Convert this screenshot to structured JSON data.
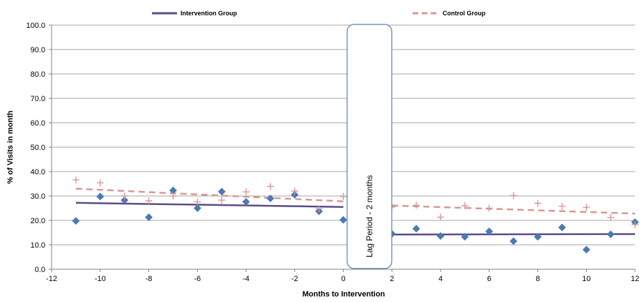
{
  "chart_data": {
    "type": "scatter",
    "title": "",
    "xlabel": "Months to Intervention",
    "ylabel": "% of Visits in month",
    "xlim": [
      -12,
      12
    ],
    "ylim": [
      0,
      100
    ],
    "x_ticks": [
      "-12",
      "-10",
      "-8",
      "-6",
      "-4",
      "-2",
      "0",
      "2",
      "4",
      "6",
      "8",
      "10",
      "12"
    ],
    "y_ticks": [
      "0.0",
      "10.0",
      "20.0",
      "30.0",
      "40.0",
      "50.0",
      "60.0",
      "70.0",
      "80.0",
      "90.0",
      "100.0"
    ],
    "grid": "horizontal",
    "legend_placement": "top",
    "annotation": "Lag Period - 2 months",
    "lag_period": [
      0,
      2
    ],
    "legend": [
      {
        "label": "Intervention Group",
        "style": "solid",
        "color": "#5b4a8b"
      },
      {
        "label": "Control Group",
        "style": "dashed",
        "color": "#d99694"
      }
    ],
    "series": [
      {
        "marker": "diamond",
        "color": "#4a7ab5",
        "points": [
          [
            -11,
            19.8
          ],
          [
            -10,
            29.8
          ],
          [
            -9,
            28.3
          ],
          [
            -8,
            21.3
          ],
          [
            -7,
            32.3
          ],
          [
            -6,
            25.0
          ],
          [
            -5,
            31.8
          ],
          [
            -4,
            27.6
          ],
          [
            -3,
            29.0
          ],
          [
            -2,
            30.5
          ],
          [
            -1,
            23.7
          ],
          [
            0,
            20.2
          ],
          [
            2,
            14.5
          ],
          [
            3,
            16.6
          ],
          [
            4,
            13.6
          ],
          [
            5,
            13.3
          ],
          [
            6,
            15.5
          ],
          [
            7,
            11.5
          ],
          [
            8,
            13.3
          ],
          [
            9,
            17.1
          ],
          [
            10,
            8.0
          ],
          [
            11,
            14.3
          ],
          [
            12,
            19.3
          ]
        ]
      },
      {
        "marker": "plus",
        "color": "#d99694",
        "points": [
          [
            -11,
            36.6
          ],
          [
            -10,
            35.4
          ],
          [
            -9,
            30.0
          ],
          [
            -8,
            28.0
          ],
          [
            -7,
            30.0
          ],
          [
            -6,
            27.6
          ],
          [
            -5,
            28.3
          ],
          [
            -4,
            31.7
          ],
          [
            -3,
            33.9
          ],
          [
            -2,
            32.0
          ],
          [
            -1,
            24.8
          ],
          [
            0,
            29.8
          ],
          [
            2,
            25.5
          ],
          [
            3,
            26.2
          ],
          [
            4,
            21.3
          ],
          [
            5,
            26.0
          ],
          [
            6,
            25.0
          ],
          [
            7,
            30.2
          ],
          [
            8,
            27.0
          ],
          [
            9,
            25.8
          ],
          [
            10,
            25.3
          ],
          [
            11,
            21.2
          ],
          [
            12,
            18.3
          ]
        ]
      }
    ],
    "trendlines": [
      {
        "label": "Intervention Group",
        "segments": [
          [
            [
              -11,
              27.2
            ],
            [
              0,
              25.5
            ]
          ],
          [
            [
              2,
              14.2
            ],
            [
              12,
              14.4
            ]
          ]
        ]
      },
      {
        "label": "Control Group",
        "segments": [
          [
            [
              -11,
              33.0
            ],
            [
              0,
              27.8
            ]
          ],
          [
            [
              2,
              26.1
            ],
            [
              12,
              22.8
            ]
          ]
        ]
      }
    ]
  }
}
